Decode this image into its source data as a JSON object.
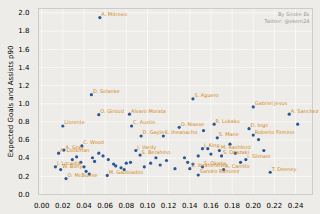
{
  "chart_data": {
    "type": "scatter",
    "ylabel": "Expected Goals and Assists p90",
    "annotations": [
      "By Sindre Ek",
      "Twitter: @ekern24"
    ],
    "color": "#2b5797",
    "grid": true,
    "xlim": [
      -0.003,
      0.256
    ],
    "ylim": [
      0.0,
      2.05
    ],
    "xticks": [
      {
        "value": 0.0,
        "label": "0.00"
      },
      {
        "value": 0.02,
        "label": "0.02"
      },
      {
        "value": 0.04,
        "label": "0.04"
      },
      {
        "value": 0.06,
        "label": "0.06"
      },
      {
        "value": 0.08,
        "label": "0.08"
      },
      {
        "value": 0.1,
        "label": "0.10"
      },
      {
        "value": 0.12,
        "label": "0.12"
      },
      {
        "value": 0.14,
        "label": "0.14"
      },
      {
        "value": 0.16,
        "label": "0.16"
      },
      {
        "value": 0.18,
        "label": "0.18"
      },
      {
        "value": 0.2,
        "label": "0.20"
      },
      {
        "value": 0.22,
        "label": "0.22"
      },
      {
        "value": 0.24,
        "label": "0.24"
      }
    ],
    "yticks": [
      {
        "value": 0.0,
        "label": "0.0"
      },
      0.2,
      0.4,
      0.6,
      0.8,
      {
        "value": 1.0,
        "label": "1.0"
      },
      1.2,
      1.4,
      1.6,
      1.8,
      {
        "value": 2.0,
        "label": "2.0"
      }
    ],
    "x": [
      0.055,
      0.047,
      0.054,
      0.02,
      0.018,
      0.023,
      0.021,
      0.016,
      0.013,
      0.038,
      0.083,
      0.085,
      0.094,
      0.089,
      0.093,
      0.062,
      0.13,
      0.115,
      0.143,
      0.14,
      0.148,
      0.152,
      0.152,
      0.163,
      0.166,
      0.168,
      0.17,
      0.172,
      0.196,
      0.2,
      0.193,
      0.2,
      0.216,
      0.234,
      0.029,
      0.033,
      0.037,
      0.04,
      0.042,
      0.045,
      0.048,
      0.05,
      0.054,
      0.058,
      0.063,
      0.068,
      0.07,
      0.075,
      0.078,
      0.08,
      0.084,
      0.097,
      0.103,
      0.108,
      0.112,
      0.118,
      0.126,
      0.135,
      0.138,
      0.143,
      0.148,
      0.153,
      0.157,
      0.16,
      0.178,
      0.183,
      0.188,
      0.205,
      0.21,
      0.242
    ],
    "values": [
      1.95,
      1.1,
      0.88,
      0.755,
      0.275,
      0.175,
      0.49,
      0.455,
      0.305,
      0.535,
      0.885,
      0.755,
      0.645,
      0.485,
      0.435,
      0.21,
      0.74,
      0.645,
      1.055,
      0.285,
      0.215,
      0.505,
      0.305,
      0.775,
      0.625,
      0.485,
      0.425,
      0.275,
      0.725,
      0.655,
      0.385,
      0.965,
      0.245,
      0.885,
      0.385,
      0.415,
      0.355,
      0.305,
      0.255,
      0.225,
      0.405,
      0.365,
      0.455,
      0.425,
      0.385,
      0.335,
      0.315,
      0.295,
      0.275,
      0.345,
      0.355,
      0.305,
      0.345,
      0.405,
      0.325,
      0.375,
      0.285,
      0.405,
      0.355,
      0.335,
      0.425,
      0.705,
      0.505,
      0.445,
      0.555,
      0.455,
      0.355,
      0.605,
      0.485,
      0.775
    ],
    "labels": [
      "A. Mitrovic",
      "D. Solanke",
      "O. Giroud",
      "Llorente",
      "W. Bony",
      "O. McBurnie",
      "A. Gray",
      "A. Lookman",
      "J. Locadia",
      "C. Wood",
      "Alvaro Morata",
      "C. Austin",
      "D. Gayle",
      "J. Vardy",
      "S. Berahino",
      "M. Gabbiadini",
      "O. Niasse",
      "K. Iheanacho",
      "S. Aguero",
      "Z. Ibrahimovic",
      "Sandro Ramirez",
      "J. King",
      "S. Okaka",
      "R. Lukaku",
      "S. Mane",
      "M. Rashford",
      "S. Okazaki",
      "A. Carrillo",
      "D. Ings",
      "Roberto Firmino",
      "I. Slimani",
      "Gabriel Jesus",
      "T. Deeney",
      "A. Sanchez",
      null,
      null,
      null,
      null,
      null,
      null,
      null,
      null,
      null,
      null,
      null,
      null,
      null,
      null,
      null,
      null,
      null,
      null,
      null,
      null,
      null,
      null,
      null,
      null,
      null,
      null,
      null,
      null,
      null,
      null,
      null,
      null,
      null,
      null,
      null,
      null
    ]
  }
}
